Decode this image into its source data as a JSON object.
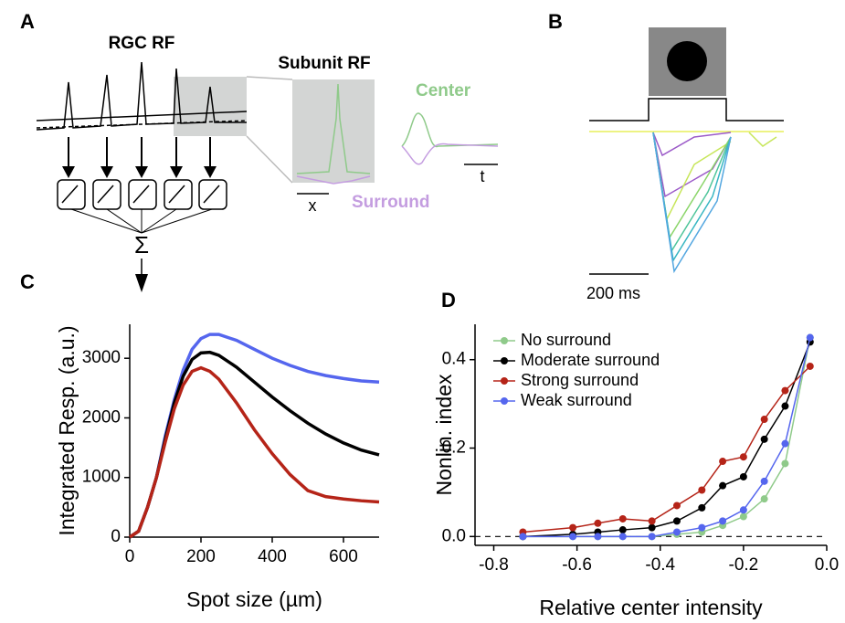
{
  "panels": [
    "A",
    "B",
    "C",
    "D"
  ],
  "diagram": {
    "rgc_title": "RGC RF",
    "subunit_title": "Subunit RF",
    "center": "Center",
    "surround": "Surround",
    "x_bar": "x",
    "t_bar": "t",
    "sum": "Σ"
  },
  "trace": {
    "scalebar": "200 ms"
  },
  "chart_data": [
    {
      "type": "line",
      "xlabel": "Spot size (µm)",
      "ylabel": "Integrated Resp. (a.u.)",
      "x": [
        0,
        25,
        50,
        75,
        100,
        125,
        150,
        175,
        200,
        225,
        250,
        300,
        350,
        400,
        450,
        500,
        550,
        600,
        650,
        700
      ],
      "xlim": [
        0,
        700
      ],
      "xticks": [
        0,
        200,
        400,
        600
      ],
      "ylim": [
        0,
        3570
      ],
      "yticks": [
        0,
        1000,
        2000,
        3000
      ],
      "series": [
        {
          "color": "#5566ee",
          "values": [
            0,
            100,
            500,
            1000,
            1700,
            2300,
            2800,
            3150,
            3330,
            3400,
            3400,
            3300,
            3150,
            3000,
            2880,
            2780,
            2710,
            2660,
            2620,
            2600
          ]
        },
        {
          "color": "#000000",
          "values": [
            0,
            100,
            500,
            1000,
            1650,
            2250,
            2700,
            2980,
            3090,
            3100,
            3050,
            2850,
            2600,
            2350,
            2120,
            1910,
            1730,
            1580,
            1460,
            1380
          ]
        },
        {
          "color": "#b52418",
          "values": [
            0,
            100,
            500,
            1000,
            1600,
            2150,
            2550,
            2780,
            2840,
            2780,
            2650,
            2250,
            1800,
            1400,
            1050,
            780,
            680,
            640,
            610,
            590
          ]
        }
      ]
    },
    {
      "type": "line-points",
      "xlabel": "Relative center intensity",
      "ylabel": "Nonlin. index",
      "x": [
        -0.73,
        -0.61,
        -0.55,
        -0.49,
        -0.42,
        -0.36,
        -0.3,
        -0.25,
        -0.2,
        -0.15,
        -0.1,
        -0.04
      ],
      "xlim": [
        -0.845,
        0
      ],
      "xticks": [
        -0.8,
        -0.6,
        -0.4,
        -0.2,
        {
          "value": 0,
          "label": "0.0"
        }
      ],
      "ylim": [
        -0.02,
        0.48
      ],
      "yticks": [
        {
          "value": 0,
          "label": "0.0"
        },
        {
          "value": 0.2,
          "label": "0.2"
        },
        {
          "value": 0.4,
          "label": "0.4"
        }
      ],
      "legend": "upper left",
      "series": [
        {
          "name": "No surround",
          "color": "#8fca8a",
          "values": [
            0,
            0,
            0,
            0,
            0,
            0.005,
            0.01,
            0.025,
            0.045,
            0.085,
            0.165,
            0.45
          ]
        },
        {
          "name": "Moderate surround",
          "color": "#000000",
          "values": [
            0,
            0.005,
            0.01,
            0.015,
            0.02,
            0.035,
            0.065,
            0.115,
            0.135,
            0.22,
            0.295,
            0.44
          ]
        },
        {
          "name": "Strong surround",
          "color": "#b52418",
          "values": [
            0.01,
            0.02,
            0.03,
            0.04,
            0.035,
            0.07,
            0.105,
            0.17,
            0.18,
            0.265,
            0.33,
            0.385
          ]
        },
        {
          "name": "Weak surround",
          "color": "#5566ee",
          "values": [
            0,
            0,
            0,
            0,
            0,
            0.01,
            0.02,
            0.035,
            0.06,
            0.125,
            0.21,
            0.45
          ]
        }
      ]
    }
  ]
}
